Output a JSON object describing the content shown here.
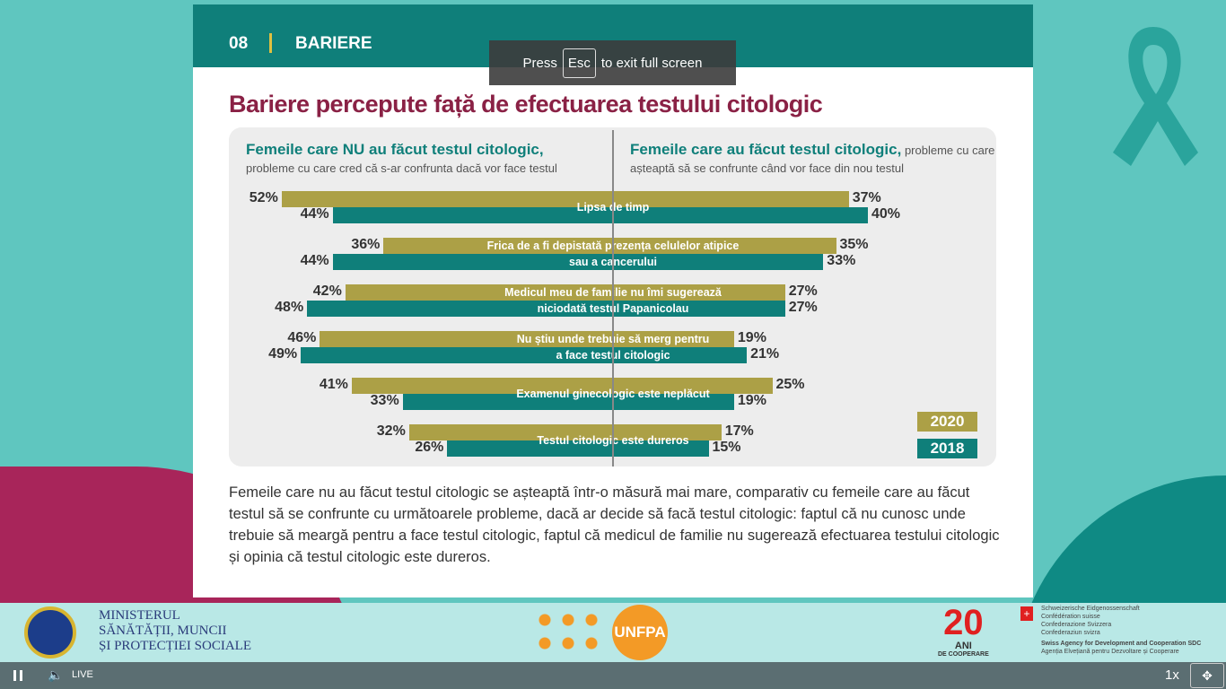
{
  "toast": {
    "pre": "Press",
    "key": "Esc",
    "post": "to exit full screen"
  },
  "header": {
    "number": "08",
    "section": "BARIERE"
  },
  "title": "Bariere percepute față de efectuarea testului citologic",
  "left_heading": "Femeile care NU au făcut testul citologic,",
  "left_sub": "probleme cu care cred că s-ar confrunta dacă vor face testul",
  "right_heading": "Femeile care au făcut testul citologic,",
  "right_heading_rest": " probleme cu care",
  "right_sub": "așteaptă să se confrunte când vor face din nou testul",
  "chart_data": {
    "type": "bar",
    "orientation": "horizontal-diverging",
    "series": [
      "2020",
      "2018"
    ],
    "colors": {
      "2020": "#aca046",
      "2018": "#0f7f7a"
    },
    "rows": [
      {
        "label1": "Lipsa de timp",
        "label2": "",
        "not_tested": {
          "2020": 52,
          "2018": 44
        },
        "tested": {
          "2020": 37,
          "2018": 40
        }
      },
      {
        "label1": "Frica de a fi depistată prezența celulelor atipice",
        "label2": "sau a cancerului",
        "not_tested": {
          "2020": 36,
          "2018": 44
        },
        "tested": {
          "2020": 35,
          "2018": 33
        }
      },
      {
        "label1": "Medicul meu de familie nu îmi sugerează",
        "label2": "niciodată testul Papanicolau",
        "not_tested": {
          "2020": 42,
          "2018": 48
        },
        "tested": {
          "2020": 27,
          "2018": 27
        }
      },
      {
        "label1": "Nu știu unde trebuie să merg pentru",
        "label2": "a face testul citologic",
        "not_tested": {
          "2020": 46,
          "2018": 49
        },
        "tested": {
          "2020": 19,
          "2018": 21
        }
      },
      {
        "label1": "Examenul ginecologic este neplăcut",
        "label2": "",
        "not_tested": {
          "2020": 41,
          "2018": 33
        },
        "tested": {
          "2020": 25,
          "2018": 19
        }
      },
      {
        "label1": "Testul citologic este dureros",
        "label2": "",
        "not_tested": {
          "2020": 32,
          "2018": 26
        },
        "tested": {
          "2020": 17,
          "2018": 15
        }
      }
    ],
    "legend": [
      "2020",
      "2018"
    ]
  },
  "paragraph": "Femeile care nu au făcut testul citologic se așteaptă într-o măsură mai mare, comparativ cu femeile care au făcut testul să se confrunte cu următoarele probleme, dacă ar decide să facă testul citologic: faptul că nu cunosc unde trebuie să meargă pentru a face testul citologic, faptul că medicul de familie nu sugerează efectuarea testului citologic și opinia că testul citologic este dureros.",
  "footer": {
    "ministry": [
      "MINISTERUL",
      "SĂNĂTĂȚII, MUNCII",
      "ȘI PROTECȚIEI SOCIALE"
    ],
    "unfpa": "UNFPA",
    "anniv_num": "20",
    "anniv": "ANI",
    "anniv_sub": "DE COOPERARE",
    "swiss": [
      "Schweizerische Eidgenossenschaft",
      "Confédération suisse",
      "Confederazione Svizzera",
      "Confederaziun svizra"
    ],
    "sdc": [
      "Swiss Agency for Development and Cooperation SDC",
      "Agenția Elvețiană pentru Dezvoltare și Cooperare"
    ]
  },
  "player": {
    "live": "LIVE",
    "speed": "1x"
  }
}
